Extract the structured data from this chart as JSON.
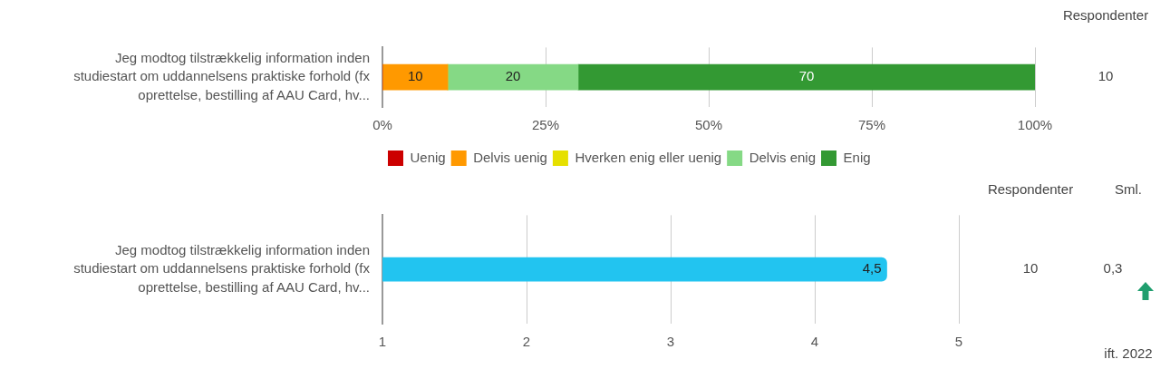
{
  "chart_data": [
    {
      "type": "bar",
      "orientation": "horizontal",
      "stacked": true,
      "categories": [
        "Jeg modtog tilstrækkelig information inden studiestart om uddannelsens praktiske forhold (fx oprettelse, bestilling af AAU Card, hv..."
      ],
      "series": [
        {
          "name": "Uenig",
          "color": "#cc0000",
          "values": [
            0
          ],
          "value_labels": [
            null
          ]
        },
        {
          "name": "Delvis uenig",
          "color": "#ff9900",
          "values": [
            10
          ],
          "value_labels": [
            "10"
          ]
        },
        {
          "name": "Hverken enig eller uenig",
          "color": "#e6e000",
          "values": [
            0
          ],
          "value_labels": [
            null
          ]
        },
        {
          "name": "Delvis enig",
          "color": "#85d985",
          "values": [
            20
          ],
          "value_labels": [
            "20"
          ]
        },
        {
          "name": "Enig",
          "color": "#339933",
          "values": [
            70
          ],
          "value_labels": [
            "70"
          ]
        }
      ],
      "xlim": [
        0,
        100
      ],
      "xticks": [
        {
          "value": 0,
          "label": "0%"
        },
        {
          "value": 25,
          "label": "25%"
        },
        {
          "value": 50,
          "label": "50%"
        },
        {
          "value": 75,
          "label": "75%"
        },
        {
          "value": 100,
          "label": "100%"
        }
      ],
      "legend": "bottom",
      "grid": "x",
      "annotations": [
        "Respondenter",
        "10"
      ]
    },
    {
      "type": "bar",
      "orientation": "horizontal",
      "categories": [
        "Jeg modtog tilstrækkelig information inden studiestart om uddannelsens praktiske forhold (fx oprettelse, bestilling af AAU Card, hv..."
      ],
      "values": [
        4.5
      ],
      "value_labels": [
        "4,5"
      ],
      "color": "#22c4f0",
      "xlim": [
        1,
        5
      ],
      "xticks": [
        1,
        2,
        3,
        4,
        5
      ],
      "grid": "x",
      "annotations": [
        "Respondenter",
        "Sml.",
        "10",
        "0,3",
        "ift. 2022"
      ]
    }
  ]
}
